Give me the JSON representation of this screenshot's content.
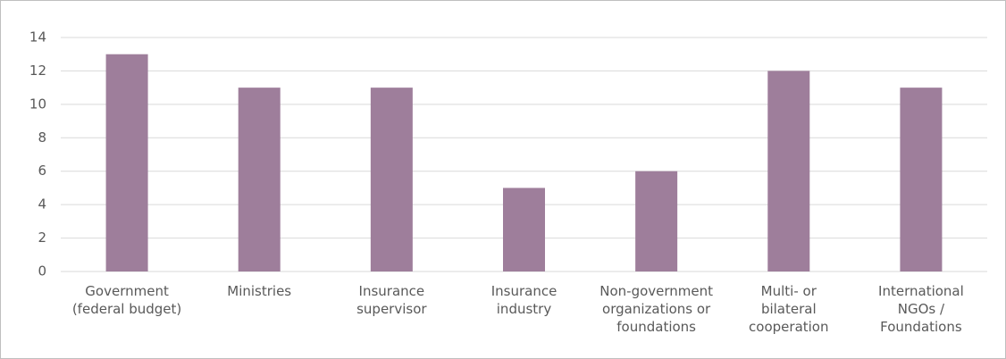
{
  "chart_data": {
    "type": "bar",
    "categories": [
      "Government\n(federal budget)",
      "Ministries",
      "Insurance\nsupervisor",
      "Insurance\nindustry",
      "Non-government\norganizations or\nfoundations",
      "Multi- or\nbilateral\ncooperation",
      "International\nNGOs /\nFoundations"
    ],
    "values": [
      13,
      11,
      11,
      5,
      6,
      12,
      11
    ],
    "color": "#9e7e9b",
    "ylim": [
      0,
      14
    ],
    "yticks": [
      0,
      2,
      4,
      6,
      8,
      10,
      12,
      14
    ],
    "grid": true
  }
}
